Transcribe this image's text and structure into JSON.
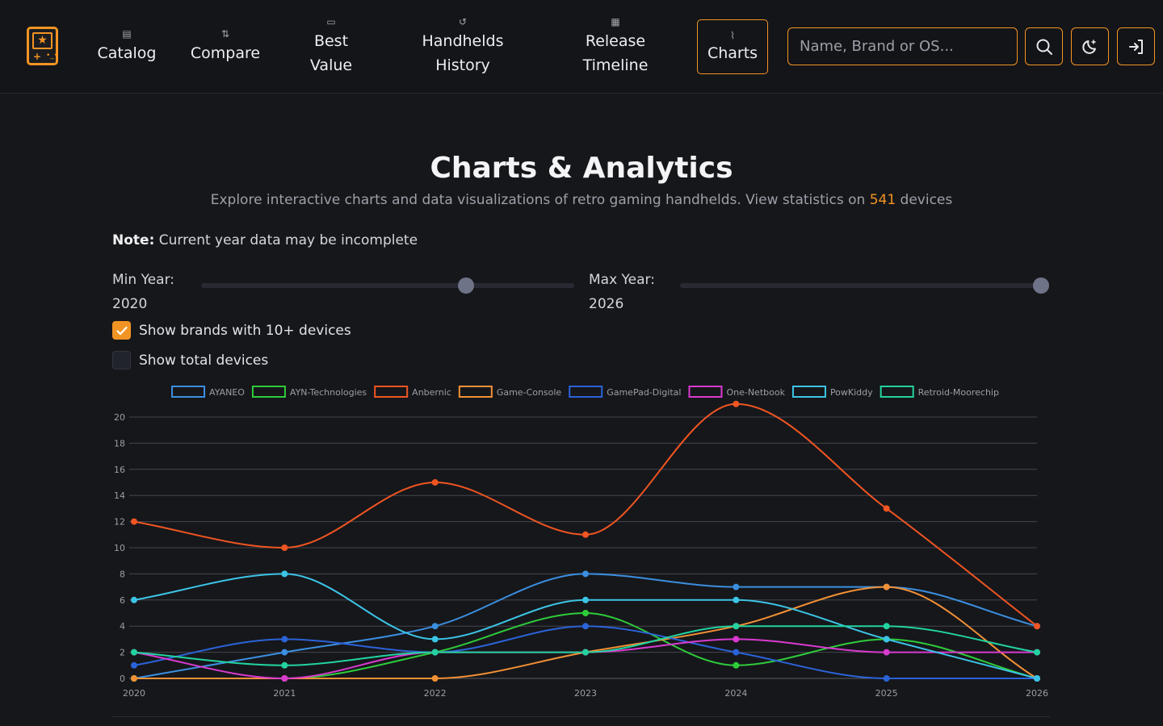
{
  "nav": {
    "items": [
      {
        "label": "Catalog",
        "icon": "catalog-icon",
        "glyph": "▤"
      },
      {
        "label": "Compare",
        "icon": "compare-icon",
        "glyph": "⇅"
      },
      {
        "label": "Best\nValue",
        "icon": "value-icon",
        "glyph": "▭"
      },
      {
        "label": "Handhelds\nHistory",
        "icon": "history-icon",
        "glyph": "↺"
      },
      {
        "label": "Release\nTimeline",
        "icon": "calendar-icon",
        "glyph": "▦"
      },
      {
        "label": "Charts",
        "icon": "chart-icon",
        "glyph": "⌇"
      }
    ],
    "active": "Charts"
  },
  "search": {
    "placeholder": "Name, Brand or OS..."
  },
  "accent": "#f29423",
  "page": {
    "title": "Charts & Analytics",
    "subtitle_pre": "Explore interactive charts and data visualizations of retro gaming handhelds. View statistics on",
    "device_count": "541",
    "subtitle_post": "devices",
    "note_bold": "Note:",
    "note_text": "Current year data may be incomplete"
  },
  "filters": {
    "min_year_label": "Min Year:",
    "min_year_value": "2020",
    "min_year_fraction": 0.71,
    "max_year_label": "Max Year:",
    "max_year_value": "2026",
    "max_year_fraction": 1.0,
    "show_brands_label": "Show brands with 10+ devices",
    "show_brands_checked": true,
    "show_total_label": "Show total devices",
    "show_total_checked": false
  },
  "chart_data": {
    "type": "line",
    "x": [
      "2020",
      "2021",
      "2022",
      "2023",
      "2024",
      "2025",
      "2026"
    ],
    "ylim": [
      0,
      20
    ],
    "yticks": [
      0,
      2,
      4,
      6,
      8,
      10,
      12,
      14,
      16,
      18,
      20
    ],
    "grid": true,
    "legend": "top-center",
    "series": [
      {
        "name": "AYANEO",
        "color": "#3b8fe0",
        "values": [
          0,
          2,
          4,
          8,
          7,
          7,
          4
        ]
      },
      {
        "name": "AYN-Technologies",
        "color": "#2ecc3a",
        "values": [
          0,
          0,
          2,
          5,
          1,
          3,
          0
        ]
      },
      {
        "name": "Anbernic",
        "color": "#f05522",
        "values": [
          12,
          10,
          15,
          11,
          21,
          13,
          4
        ]
      },
      {
        "name": "Game-Console",
        "color": "#f29035",
        "values": [
          0,
          0,
          0,
          2,
          4,
          7,
          0
        ]
      },
      {
        "name": "GamePad-Digital",
        "color": "#2b63d8",
        "values": [
          1,
          3,
          2,
          4,
          2,
          0,
          0
        ]
      },
      {
        "name": "One-Netbook",
        "color": "#d93ad0",
        "values": [
          2,
          0,
          2,
          2,
          3,
          2,
          2
        ]
      },
      {
        "name": "PowKiddy",
        "color": "#3cc4e6",
        "values": [
          6,
          8,
          3,
          6,
          6,
          3,
          0
        ]
      },
      {
        "name": "Retroid-Moorechip",
        "color": "#22d3a0",
        "values": [
          2,
          1,
          2,
          2,
          4,
          4,
          2
        ]
      }
    ]
  }
}
